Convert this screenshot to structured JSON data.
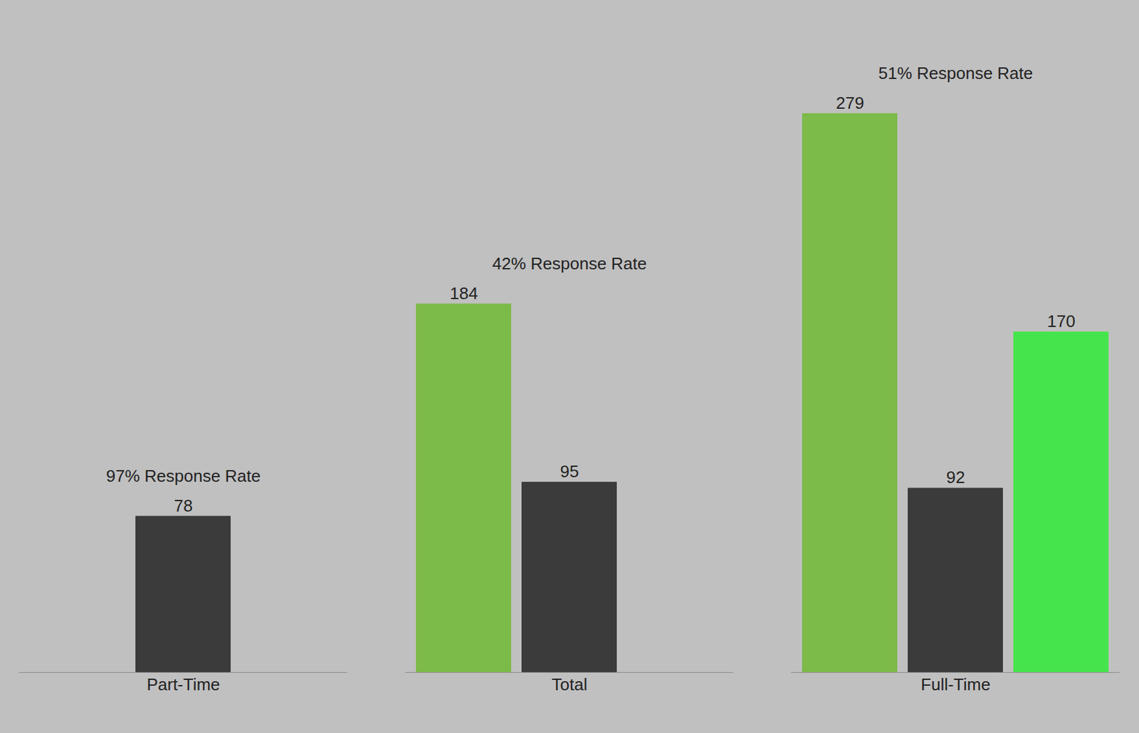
{
  "chart_data": {
    "type": "bar",
    "categories": [
      "Part-Time",
      "Total",
      "Full-Time"
    ],
    "series": [
      {
        "color": "#7cba4a",
        "values": [
          null,
          184,
          279
        ]
      },
      {
        "color": "#3b3b3b",
        "values": [
          78,
          95,
          92
        ]
      },
      {
        "color": "#46e44c",
        "values": [
          null,
          null,
          170
        ]
      }
    ],
    "annotations": [
      "97% Response Rate",
      "42% Response Rate",
      "51% Response Rate"
    ],
    "ylim": [
      0,
      320
    ],
    "data_labels": true,
    "tick_labels": "x",
    "grid": false
  }
}
